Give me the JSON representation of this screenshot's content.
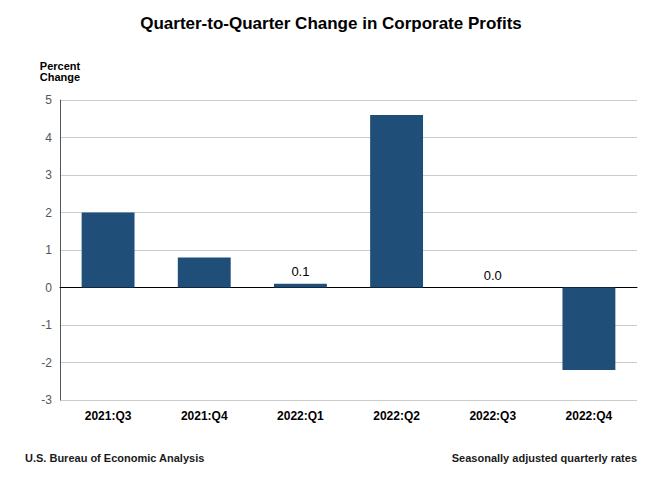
{
  "chart_data": {
    "type": "bar",
    "title": "Quarter-to-Quarter Change in Corporate Profits",
    "ylabel": "Percent\nChange",
    "categories": [
      "2021:Q3",
      "2021:Q4",
      "2022:Q1",
      "2022:Q2",
      "2022:Q3",
      "2022:Q4"
    ],
    "values": [
      2.0,
      0.8,
      0.1,
      4.6,
      0.0,
      -2.2
    ],
    "color": "#1F4E79",
    "ylim": [
      -3,
      5
    ],
    "yticks": [
      -3,
      -2,
      -1,
      0,
      1,
      2,
      3,
      4,
      5
    ],
    "grid": true,
    "annotations": [
      {
        "x": "2022:Q1",
        "y": 0.1,
        "text": "0.1"
      },
      {
        "x": "2022:Q3",
        "y": 0.0,
        "text": "0.0"
      }
    ],
    "footer_left": "U.S. Bureau of Economic Analysis",
    "footer_right": "Seasonally adjusted quarterly rates"
  }
}
